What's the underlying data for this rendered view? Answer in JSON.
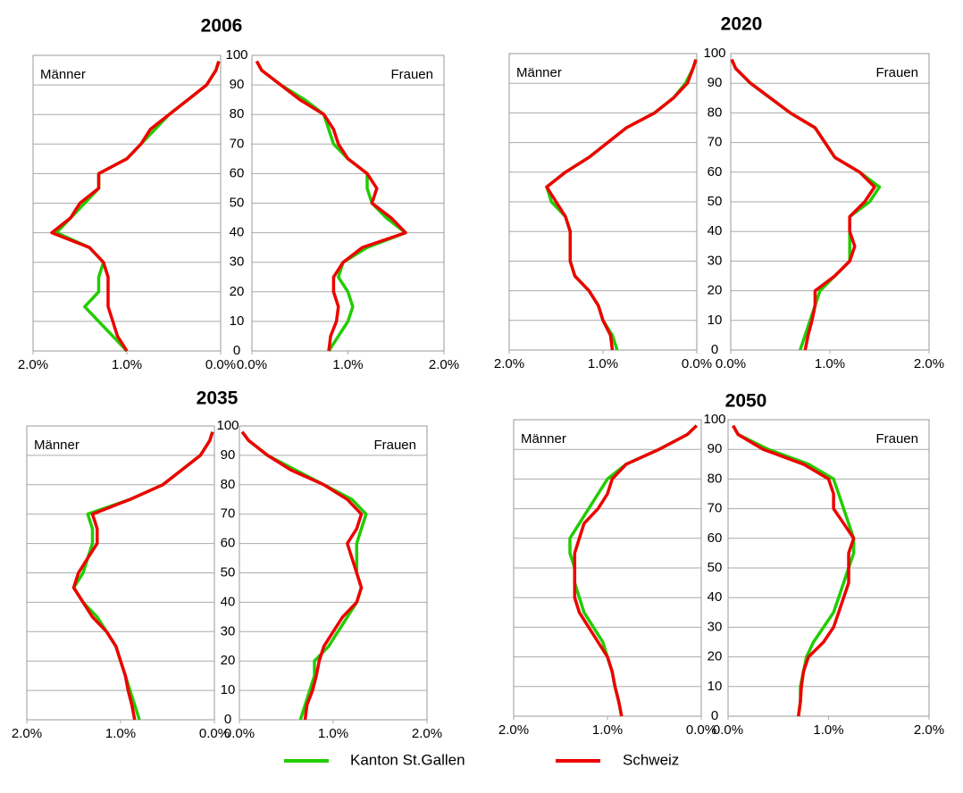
{
  "legend": [
    {
      "name": "Kanton St.Gallen",
      "color": "#22cc00"
    },
    {
      "name": "Schweiz",
      "color": "#ee0000"
    }
  ],
  "chart_data": [
    {
      "type": "line",
      "title": "2006",
      "y": [
        0,
        5,
        10,
        15,
        20,
        25,
        30,
        35,
        40,
        45,
        50,
        55,
        60,
        65,
        70,
        75,
        80,
        85,
        90,
        95,
        98
      ],
      "ylim": [
        0,
        100
      ],
      "yticks": [
        0,
        10,
        20,
        30,
        40,
        50,
        60,
        70,
        80,
        90,
        100
      ],
      "panels": [
        {
          "label": "Männer",
          "xlim": [
            2,
            0
          ],
          "xticks": [
            {
              "value": 2,
              "label": "2.0%"
            },
            {
              "value": 1,
              "label": "1.0%"
            },
            {
              "value": 0,
              "label": "0.0%"
            }
          ],
          "series": [
            {
              "values": [
                1.0,
                1.15,
                1.3,
                1.45,
                1.3,
                1.3,
                1.25,
                1.4,
                1.75,
                1.6,
                1.45,
                1.3,
                1.3,
                1.0,
                0.85,
                0.7,
                0.55,
                0.35,
                0.15,
                0.05,
                0.02
              ]
            },
            {
              "values": [
                1.0,
                1.1,
                1.15,
                1.2,
                1.2,
                1.2,
                1.25,
                1.4,
                1.8,
                1.6,
                1.5,
                1.3,
                1.3,
                1.0,
                0.85,
                0.75,
                0.55,
                0.35,
                0.15,
                0.05,
                0.02
              ]
            }
          ]
        },
        {
          "label": "Frauen",
          "xlim": [
            0,
            2
          ],
          "xticks": [
            {
              "value": 0,
              "label": "0.0%"
            },
            {
              "value": 1,
              "label": "1.0%"
            },
            {
              "value": 2,
              "label": "2.0%"
            }
          ],
          "series": [
            {
              "values": [
                0.8,
                0.9,
                1.0,
                1.05,
                1.0,
                0.9,
                0.95,
                1.2,
                1.6,
                1.4,
                1.25,
                1.2,
                1.2,
                1.0,
                0.85,
                0.8,
                0.75,
                0.55,
                0.3,
                0.1,
                0.05
              ]
            },
            {
              "values": [
                0.8,
                0.82,
                0.88,
                0.9,
                0.85,
                0.85,
                0.95,
                1.15,
                1.6,
                1.45,
                1.25,
                1.3,
                1.2,
                1.0,
                0.9,
                0.85,
                0.75,
                0.5,
                0.3,
                0.1,
                0.05
              ]
            }
          ]
        }
      ]
    },
    {
      "type": "line",
      "title": "2020",
      "y": [
        0,
        5,
        10,
        15,
        20,
        25,
        30,
        35,
        40,
        45,
        50,
        55,
        60,
        65,
        70,
        75,
        80,
        85,
        90,
        95,
        98
      ],
      "ylim": [
        0,
        100
      ],
      "yticks": [
        0,
        10,
        20,
        30,
        40,
        50,
        60,
        70,
        80,
        90,
        100
      ],
      "panels": [
        {
          "label": "Männer",
          "xlim": [
            2,
            0
          ],
          "xticks": [
            {
              "value": 2,
              "label": "2.0%"
            },
            {
              "value": 1,
              "label": "1.0%"
            },
            {
              "value": 0,
              "label": "0.0%"
            }
          ],
          "series": [
            {
              "values": [
                0.85,
                0.9,
                1.0,
                1.05,
                1.15,
                1.3,
                1.35,
                1.35,
                1.35,
                1.4,
                1.55,
                1.6,
                1.4,
                1.15,
                0.95,
                0.75,
                0.45,
                0.25,
                0.12,
                0.04,
                0.01
              ]
            },
            {
              "values": [
                0.9,
                0.92,
                1.0,
                1.05,
                1.15,
                1.3,
                1.35,
                1.35,
                1.35,
                1.4,
                1.5,
                1.6,
                1.4,
                1.15,
                0.95,
                0.75,
                0.45,
                0.25,
                0.1,
                0.04,
                0.01
              ]
            }
          ]
        },
        {
          "label": "Frauen",
          "xlim": [
            0,
            2
          ],
          "xticks": [
            {
              "value": 0,
              "label": "0.0%"
            },
            {
              "value": 1,
              "label": "1.0%"
            },
            {
              "value": 2,
              "label": "2.0%"
            }
          ],
          "series": [
            {
              "values": [
                0.7,
                0.75,
                0.8,
                0.85,
                0.9,
                1.05,
                1.2,
                1.2,
                1.2,
                1.2,
                1.4,
                1.5,
                1.3,
                1.05,
                0.95,
                0.85,
                0.6,
                0.4,
                0.2,
                0.05,
                0.01
              ]
            },
            {
              "values": [
                0.75,
                0.78,
                0.82,
                0.85,
                0.85,
                1.05,
                1.2,
                1.25,
                1.2,
                1.2,
                1.35,
                1.45,
                1.3,
                1.05,
                0.95,
                0.85,
                0.6,
                0.4,
                0.2,
                0.05,
                0.01
              ]
            }
          ]
        }
      ]
    },
    {
      "type": "line",
      "title": "2035",
      "y": [
        0,
        5,
        10,
        15,
        20,
        25,
        30,
        35,
        40,
        45,
        50,
        55,
        60,
        65,
        70,
        75,
        80,
        85,
        90,
        95,
        98
      ],
      "ylim": [
        0,
        100
      ],
      "yticks": [
        0,
        10,
        20,
        30,
        40,
        50,
        60,
        70,
        80,
        90,
        100
      ],
      "panels": [
        {
          "label": "Männer",
          "xlim": [
            2,
            0
          ],
          "xticks": [
            {
              "value": 2,
              "label": "2.0%"
            },
            {
              "value": 1,
              "label": "1.0%"
            },
            {
              "value": 0,
              "label": "0.0%"
            }
          ],
          "series": [
            {
              "values": [
                0.8,
                0.85,
                0.9,
                0.95,
                1.0,
                1.05,
                1.15,
                1.25,
                1.4,
                1.5,
                1.4,
                1.35,
                1.3,
                1.3,
                1.35,
                0.9,
                0.55,
                0.35,
                0.15,
                0.05,
                0.02
              ]
            },
            {
              "values": [
                0.85,
                0.88,
                0.92,
                0.95,
                1.0,
                1.05,
                1.15,
                1.3,
                1.4,
                1.5,
                1.45,
                1.35,
                1.25,
                1.25,
                1.3,
                0.9,
                0.55,
                0.35,
                0.15,
                0.05,
                0.02
              ]
            }
          ]
        },
        {
          "label": "Frauen",
          "xlim": [
            0,
            2
          ],
          "xticks": [
            {
              "value": 0,
              "label": "0.0%"
            },
            {
              "value": 1,
              "label": "1.0%"
            },
            {
              "value": 2,
              "label": "2.0%"
            }
          ],
          "series": [
            {
              "values": [
                0.65,
                0.7,
                0.75,
                0.8,
                0.8,
                0.95,
                1.05,
                1.15,
                1.25,
                1.3,
                1.25,
                1.25,
                1.25,
                1.3,
                1.35,
                1.2,
                0.9,
                0.6,
                0.3,
                0.1,
                0.03
              ]
            },
            {
              "values": [
                0.7,
                0.72,
                0.78,
                0.82,
                0.85,
                0.9,
                1.0,
                1.1,
                1.25,
                1.3,
                1.25,
                1.2,
                1.15,
                1.25,
                1.3,
                1.15,
                0.9,
                0.55,
                0.3,
                0.1,
                0.03
              ]
            }
          ]
        }
      ]
    },
    {
      "type": "line",
      "title": "2050",
      "y": [
        0,
        5,
        10,
        15,
        20,
        25,
        30,
        35,
        40,
        45,
        50,
        55,
        60,
        65,
        70,
        75,
        80,
        85,
        90,
        95,
        98
      ],
      "ylim": [
        0,
        100
      ],
      "yticks": [
        0,
        10,
        20,
        30,
        40,
        50,
        60,
        70,
        80,
        90,
        100
      ],
      "panels": [
        {
          "label": "Männer",
          "xlim": [
            2,
            0
          ],
          "xticks": [
            {
              "value": 2,
              "label": "2.0%"
            },
            {
              "value": 1,
              "label": "1.0%"
            },
            {
              "value": 0,
              "label": "0.0%"
            }
          ],
          "series": [
            {
              "values": [
                0.85,
                0.88,
                0.92,
                0.95,
                1.0,
                1.05,
                1.15,
                1.25,
                1.3,
                1.35,
                1.35,
                1.4,
                1.4,
                1.3,
                1.2,
                1.1,
                1.0,
                0.8,
                0.45,
                0.15,
                0.05
              ]
            },
            {
              "values": [
                0.85,
                0.88,
                0.92,
                0.95,
                1.0,
                1.1,
                1.2,
                1.3,
                1.35,
                1.35,
                1.35,
                1.35,
                1.3,
                1.25,
                1.1,
                1.0,
                0.95,
                0.8,
                0.45,
                0.15,
                0.05
              ]
            }
          ]
        },
        {
          "label": "Frauen",
          "xlim": [
            0,
            2
          ],
          "xticks": [
            {
              "value": 0,
              "label": "0.0%"
            },
            {
              "value": 1,
              "label": "1.0%"
            },
            {
              "value": 2,
              "label": "2.0%"
            }
          ],
          "series": [
            {
              "values": [
                0.7,
                0.72,
                0.72,
                0.75,
                0.78,
                0.85,
                0.95,
                1.05,
                1.1,
                1.15,
                1.2,
                1.25,
                1.25,
                1.2,
                1.15,
                1.1,
                1.05,
                0.8,
                0.4,
                0.1,
                0.05
              ]
            },
            {
              "values": [
                0.7,
                0.72,
                0.73,
                0.75,
                0.8,
                0.95,
                1.05,
                1.1,
                1.15,
                1.2,
                1.2,
                1.2,
                1.25,
                1.15,
                1.05,
                1.05,
                1.0,
                0.75,
                0.35,
                0.1,
                0.05
              ]
            }
          ]
        }
      ]
    }
  ]
}
